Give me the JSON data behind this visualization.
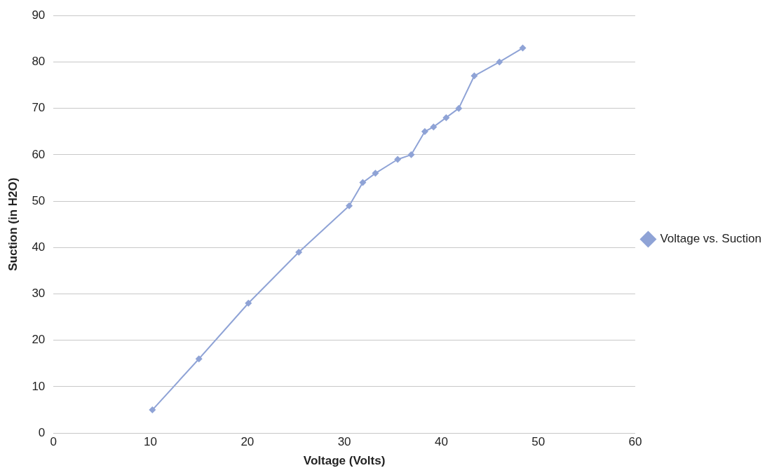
{
  "chart_data": {
    "type": "line",
    "xlabel": "Voltage (Volts)",
    "ylabel": "Suction (in H2O)",
    "series": [
      {
        "name": "Voltage vs. Suction",
        "color": "#8fa3d6",
        "x": [
          10.2,
          15,
          20.1,
          25.3,
          30.5,
          31.9,
          33.2,
          35.5,
          36.9,
          38.3,
          39.2,
          40.5,
          41.8,
          43.4,
          46,
          48.4
        ],
        "values": [
          5,
          16,
          28,
          39,
          49,
          54,
          56,
          59,
          60,
          65,
          66,
          68,
          70,
          77,
          80,
          83
        ]
      }
    ],
    "xlim": [
      0,
      60
    ],
    "xticks": [
      0,
      10,
      20,
      30,
      40,
      50,
      60
    ],
    "ylim": [
      0,
      90
    ],
    "yticks": [
      0,
      10,
      20,
      30,
      40,
      50,
      60,
      70,
      80,
      90
    ],
    "grid": "y",
    "legend": "right",
    "marker": "diamond",
    "line_style": "solid"
  }
}
